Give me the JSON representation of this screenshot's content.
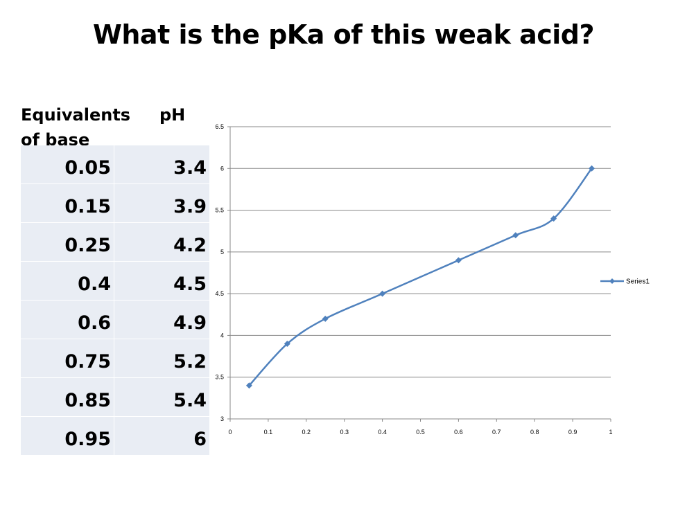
{
  "slide": {
    "title": "What is the pKa of this weak acid?"
  },
  "table": {
    "header_equivalents": "Equivalents of base",
    "header_ph": "pH",
    "rows": [
      {
        "eq": "0.05",
        "ph": "3.4"
      },
      {
        "eq": "0.15",
        "ph": "3.9"
      },
      {
        "eq": "0.25",
        "ph": "4.2"
      },
      {
        "eq": "0.4",
        "ph": "4.5"
      },
      {
        "eq": "0.6",
        "ph": "4.9"
      },
      {
        "eq": "0.75",
        "ph": "5.2"
      },
      {
        "eq": "0.85",
        "ph": "5.4"
      },
      {
        "eq": "0.95",
        "ph": "6"
      }
    ]
  },
  "colors": {
    "series": "#4f81bd",
    "table_fill": "#e9edf4",
    "grid": "#888888"
  },
  "chart_data": {
    "type": "line",
    "title": "",
    "xlabel": "",
    "ylabel": "",
    "xlim": [
      0,
      1
    ],
    "ylim": [
      3,
      6.5
    ],
    "x_ticks": [
      "0",
      "0.1",
      "0.2",
      "0.3",
      "0.4",
      "0.5",
      "0.6",
      "0.7",
      "0.8",
      "0.9",
      "1"
    ],
    "y_ticks": [
      "3",
      "3.5",
      "4",
      "4.5",
      "5",
      "5.5",
      "6",
      "6.5"
    ],
    "grid": true,
    "smooth": true,
    "legend_position": "right",
    "series": [
      {
        "name": "Series1",
        "marker": "diamond",
        "x": [
          0.05,
          0.15,
          0.25,
          0.4,
          0.6,
          0.75,
          0.85,
          0.95
        ],
        "y": [
          3.4,
          3.9,
          4.2,
          4.5,
          4.9,
          5.2,
          5.4,
          6
        ]
      }
    ]
  }
}
